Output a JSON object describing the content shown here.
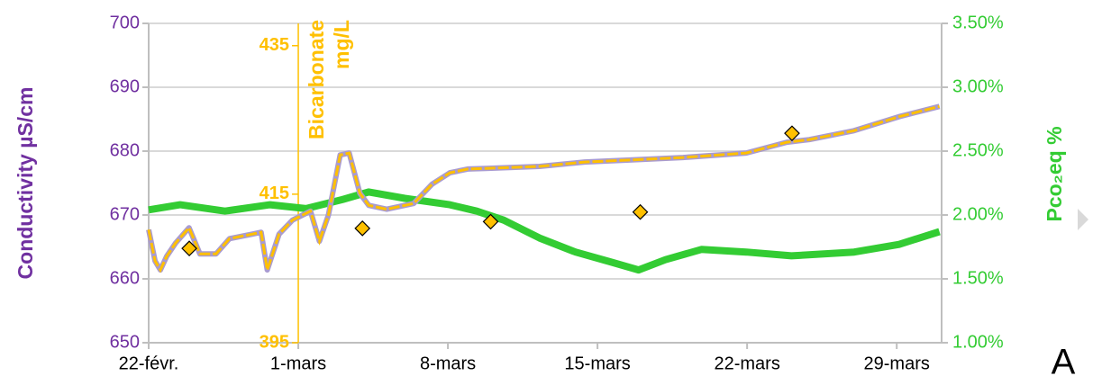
{
  "chart_data": {
    "type": "line",
    "y_label": "Conductivity  µS/cm",
    "y2_label": "Pco₂eq  %",
    "y3_label": [
      "Bicarbonate",
      "mg/L"
    ],
    "annotation": "A",
    "xlim": [
      0,
      37.1
    ],
    "xticks": [
      {
        "value": 0,
        "label": "22-févr."
      },
      {
        "value": 7,
        "label": "1-mars"
      },
      {
        "value": 14,
        "label": "8-mars"
      },
      {
        "value": 21,
        "label": "15-mars"
      },
      {
        "value": 28,
        "label": "22-mars"
      },
      {
        "value": 35,
        "label": "29-mars"
      }
    ],
    "ylim": [
      650,
      700
    ],
    "yticks": [
      650,
      660,
      670,
      680,
      690,
      700
    ],
    "y2lim": [
      1.0,
      3.5
    ],
    "y2ticks": [
      {
        "value": 1.0,
        "label": "1.00%"
      },
      {
        "value": 1.5,
        "label": "1.50%"
      },
      {
        "value": 2.0,
        "label": "2.00%"
      },
      {
        "value": 2.5,
        "label": "2.50%"
      },
      {
        "value": 3.0,
        "label": "3.00%"
      },
      {
        "value": 3.5,
        "label": "3.50%"
      }
    ],
    "y3lim": [
      395,
      438
    ],
    "y3ticks": [
      395,
      415,
      435
    ],
    "y3_position": 7,
    "y3_color": "#ffc000",
    "grid": true,
    "series": [
      {
        "color": "#a99bd0",
        "dash_color": "#ffc000",
        "axis": "y",
        "x": [
          0,
          0.3,
          0.55,
          0.84,
          1.26,
          1.89,
          2.4,
          3.15,
          3.78,
          4.84,
          5.26,
          5.55,
          6.1,
          6.73,
          7.57,
          7.99,
          8.41,
          8.96,
          9.38,
          9.88,
          10.3,
          11.14,
          12.4,
          13.25,
          14.09,
          14.93,
          15.77,
          18.29,
          20.4,
          22.5,
          25.0,
          27.96,
          29.86,
          30.91,
          33.0,
          35.11,
          37.0
        ],
        "values": [
          667.7,
          662.8,
          661.4,
          663.5,
          665.6,
          668.0,
          663.9,
          663.9,
          666.3,
          667.0,
          667.3,
          661.4,
          667.0,
          669.2,
          670.6,
          665.9,
          670.0,
          679.4,
          679.7,
          673.4,
          671.5,
          670.9,
          671.8,
          674.8,
          676.6,
          677.2,
          677.3,
          677.6,
          678.3,
          678.6,
          679.0,
          679.7,
          681.4,
          681.8,
          683.2,
          685.4,
          687.0
        ]
      },
      {
        "color": "#33cc33",
        "axis": "y2",
        "x": [
          0,
          1.47,
          3.57,
          5.68,
          7.36,
          9.04,
          10.3,
          11.98,
          14.09,
          15.35,
          16.61,
          18.29,
          19.97,
          21.66,
          22.92,
          24.18,
          25.86,
          27.96,
          30.07,
          33.01,
          35.11,
          37.0
        ],
        "values": [
          2.04,
          2.08,
          2.03,
          2.08,
          2.05,
          2.12,
          2.18,
          2.13,
          2.08,
          2.03,
          1.96,
          1.82,
          1.71,
          1.63,
          1.57,
          1.65,
          1.73,
          1.71,
          1.68,
          1.71,
          1.77,
          1.87
        ]
      },
      {
        "color": "#ffc000",
        "axis": "y3",
        "marker": "diamond",
        "x": [
          1.9,
          10.0,
          16.0,
          23.0,
          30.1
        ],
        "values": [
          407.7,
          410.4,
          411.3,
          412.6,
          423.2
        ]
      }
    ]
  }
}
